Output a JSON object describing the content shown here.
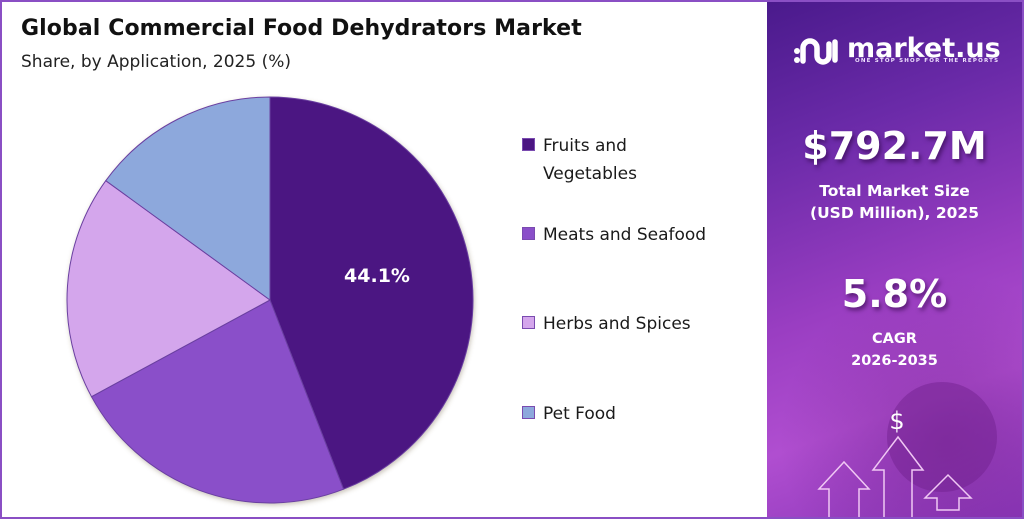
{
  "header": {
    "title": "Global Commercial Food Dehydrators Market",
    "subtitle": "Share, by Application, 2025 (%)"
  },
  "chart_data": {
    "type": "pie",
    "title": "Global Commercial Food Dehydrators Market",
    "subtitle": "Share, by Application, 2025 (%)",
    "categories": [
      "Fruits and Vegetables",
      "Meats and Seafood",
      "Herbs and Spices",
      "Pet Food"
    ],
    "values": [
      44.1,
      23.0,
      17.9,
      15.0
    ],
    "colors": [
      "#4b1582",
      "#8a4fc9",
      "#d4a6ec",
      "#8da8dc"
    ],
    "data_labels": [
      "44.1%",
      "",
      "",
      ""
    ],
    "start_angle_deg": 0,
    "direction": "clockwise",
    "legend_position": "right"
  },
  "pie": {
    "label_main": "44.1%"
  },
  "legend": {
    "items": [
      {
        "label": "Fruits and Vegetables",
        "color": "#4b1582"
      },
      {
        "label": "Meats and Seafood",
        "color": "#8a4fc9"
      },
      {
        "label": "Herbs and Spices",
        "color": "#d4a6ec"
      },
      {
        "label": "Pet Food",
        "color": "#8da8dc"
      }
    ]
  },
  "sidebar": {
    "brand_name": "market.us",
    "brand_tagline": "ONE STOP SHOP FOR THE REPORTS",
    "market_size_value": "$792.7M",
    "market_size_label_line1": "Total Market Size",
    "market_size_label_line2": "(USD Million), 2025",
    "cagr_value": "5.8%",
    "cagr_label_line1": "CAGR",
    "cagr_label_line2": "2026-2035",
    "dollar_symbol": "$"
  }
}
